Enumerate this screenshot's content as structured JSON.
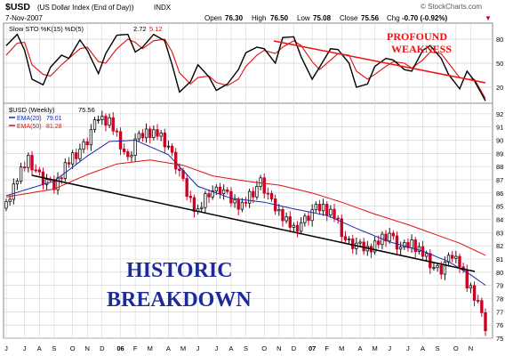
{
  "header": {
    "symbol": "$USD",
    "description": "(US Dollar Index (End of Day))",
    "exchange": "INDX",
    "date": "7-Nov-2007",
    "open_label": "Open",
    "open": "76.30",
    "high_label": "High",
    "high": "76.50",
    "low_label": "Low",
    "low": "75.08",
    "close_label": "Close",
    "close": "75.56",
    "chg_label": "Chg",
    "chg": "-0.70 (-0.92%)",
    "chg_marker": "▼",
    "watermark": "© StockCharts.com"
  },
  "colors": {
    "price_up": "#111111",
    "price_down": "#cc0022",
    "ema20": "#1a2aa8",
    "ema50": "#dd1111",
    "stoch_k": "#000000",
    "stoch_d": "#dd1111",
    "trend_lower": "#000000",
    "trend_upper": "#ee1111",
    "annotation_lower": "#1c2a9a",
    "annotation_upper": "#ee1111",
    "grid": "#cfcfcf"
  },
  "chart_data": [
    {
      "type": "line",
      "title": "Slow STO %K(15) %D(5)",
      "legend_values": {
        "k": "2.72",
        "d": "5.12"
      },
      "ylim": [
        0,
        100
      ],
      "y_ticks": [
        20,
        50,
        80
      ],
      "x": [
        0,
        3,
        5,
        7,
        10,
        12,
        15,
        17,
        20,
        22,
        25,
        27,
        30,
        33,
        35,
        37,
        40,
        43,
        45,
        47,
        50,
        52,
        55,
        57,
        60,
        63,
        65,
        68,
        70,
        73,
        75,
        78,
        80,
        83,
        85,
        88,
        90,
        93,
        95,
        98,
        100,
        103,
        105,
        108,
        110,
        113,
        115,
        118,
        120,
        123,
        125,
        127,
        130
      ],
      "series": [
        {
          "name": "%K(15)",
          "values": [
            72,
            86,
            66,
            30,
            23,
            45,
            60,
            56,
            79,
            66,
            37,
            62,
            85,
            86,
            64,
            70,
            86,
            78,
            48,
            14,
            27,
            48,
            33,
            16,
            24,
            42,
            63,
            70,
            68,
            50,
            82,
            83,
            58,
            30,
            45,
            68,
            67,
            50,
            20,
            24,
            46,
            56,
            54,
            42,
            40,
            66,
            72,
            56,
            36,
            18,
            40,
            28,
            3
          ]
        },
        {
          "name": "%D(5)",
          "values": [
            60,
            75,
            76,
            48,
            36,
            34,
            48,
            56,
            68,
            70,
            52,
            50,
            68,
            80,
            76,
            68,
            78,
            80,
            64,
            38,
            24,
            32,
            34,
            26,
            22,
            30,
            46,
            60,
            66,
            62,
            70,
            78,
            72,
            52,
            42,
            54,
            62,
            60,
            40,
            30,
            36,
            46,
            52,
            50,
            44,
            54,
            64,
            62,
            50,
            32,
            30,
            30,
            6
          ]
        }
      ],
      "trendline_label": [
        "PROFOUND",
        "WEAKNESS"
      ]
    },
    {
      "type": "candlestick",
      "title": "$USD (Weekly)",
      "last_value": "75.56",
      "overlays": [
        {
          "name": "EMA(20)",
          "value": "79.01"
        },
        {
          "name": "EMA(50)",
          "value": "81.28"
        }
      ],
      "ylim": [
        75,
        92.8
      ],
      "y_ticks": [
        75,
        76,
        77,
        78,
        79,
        80,
        81,
        82,
        83,
        84,
        85,
        86,
        87,
        88,
        89,
        90,
        91,
        92
      ],
      "x_ticks": [
        "J",
        "J",
        "A",
        "S",
        "O",
        "N",
        "D",
        "06",
        "F",
        "M",
        "A",
        "M",
        "J",
        "J",
        "A",
        "S",
        "O",
        "N",
        "D",
        "07",
        "F",
        "M",
        "A",
        "M",
        "J",
        "J",
        "A",
        "S",
        "O",
        "N"
      ],
      "x_ticks_bold": [
        "06",
        "07"
      ],
      "x_ticks_week": [
        0,
        5,
        9,
        13,
        18,
        22,
        26,
        31,
        35,
        39,
        44,
        48,
        52,
        57,
        61,
        65,
        70,
        74,
        78,
        83,
        87,
        91,
        96,
        100,
        104,
        109,
        113,
        117,
        122,
        126
      ],
      "close_anchors": {
        "week": [
          0,
          3,
          6,
          10,
          13,
          16,
          19,
          22,
          25,
          28,
          30,
          33,
          35,
          38,
          41,
          44,
          47,
          49,
          52,
          55,
          58,
          61,
          64,
          67,
          69,
          72,
          75,
          78,
          81,
          84,
          86,
          89,
          92,
          95,
          98,
          101,
          104,
          107,
          110,
          113,
          116,
          118,
          121,
          123,
          125,
          128,
          130
        ],
        "close": [
          85.0,
          87.3,
          88.4,
          87.0,
          86.5,
          88.0,
          88.9,
          90.0,
          91.8,
          91.4,
          90.2,
          88.5,
          89.9,
          90.7,
          90.4,
          89.5,
          87.5,
          86.0,
          84.5,
          86.0,
          86.3,
          85.5,
          85.0,
          86.0,
          86.9,
          85.2,
          84.3,
          83.1,
          84.0,
          84.8,
          85.0,
          84.2,
          82.4,
          82.0,
          81.8,
          82.2,
          82.9,
          81.7,
          82.3,
          81.3,
          80.3,
          80.2,
          81.3,
          80.8,
          78.9,
          77.8,
          75.56
        ]
      },
      "ema20_anchors": {
        "week": [
          0,
          13,
          22,
          28,
          35,
          44,
          52,
          61,
          70,
          78,
          87,
          96,
          104,
          113,
          120,
          126,
          130
        ],
        "value": [
          85.8,
          86.9,
          88.8,
          89.9,
          90.0,
          88.9,
          86.5,
          85.6,
          85.3,
          84.8,
          84.3,
          83.2,
          82.3,
          81.6,
          80.8,
          79.8,
          79.01
        ]
      },
      "ema50_anchors": {
        "week": [
          0,
          13,
          22,
          30,
          39,
          48,
          56,
          65,
          74,
          83,
          91,
          100,
          109,
          117,
          123,
          130
        ],
        "value": [
          85.7,
          86.3,
          87.4,
          88.2,
          88.5,
          88.1,
          87.3,
          86.9,
          86.6,
          86.0,
          85.3,
          84.4,
          83.6,
          82.8,
          82.2,
          81.28
        ]
      },
      "annotation": [
        "HISTORIC",
        "BREAKDOWN"
      ]
    }
  ]
}
